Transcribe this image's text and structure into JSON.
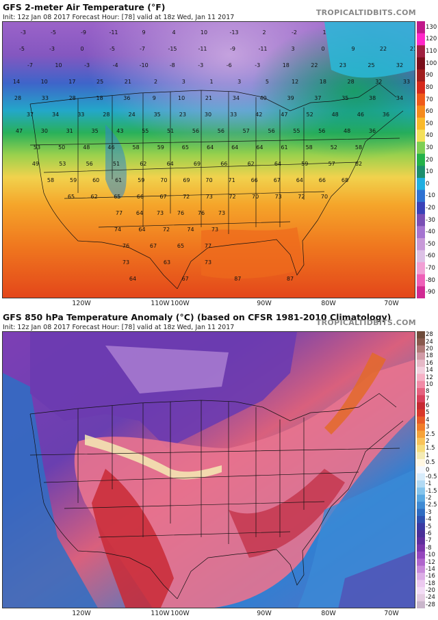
{
  "top_panel": {
    "title": "GFS 2-meter Air Temperature (°F)",
    "subtitle": "Init: 12z Jan 08 2017   Forecast Hour: [78]   valid at 18z Wed, Jan 11 2017",
    "brand": "TROPICALTIDBITS.COM",
    "colorbar_ticks": [
      "130",
      "120",
      "110",
      "100",
      "90",
      "80",
      "70",
      "60",
      "50",
      "40",
      "30",
      "20",
      "10",
      "0",
      "-10",
      "-20",
      "-30",
      "-40",
      "-50",
      "-60",
      "-70",
      "-80",
      "-90"
    ],
    "colorbar_colors": [
      "#c0198a",
      "#ff28c9",
      "#a02040",
      "#7a0e1a",
      "#a01e1e",
      "#d62a1c",
      "#ef5a1a",
      "#f58a1c",
      "#f9b92a",
      "#f4e05a",
      "#7fcf55",
      "#24b24a",
      "#1c8f6d",
      "#20aee0",
      "#2f72d2",
      "#3a42b8",
      "#7a4fb5",
      "#a574d0",
      "#c89ad8",
      "#dcc1e6",
      "#f1a0d5",
      "#ee60b8",
      "#d02a93"
    ],
    "lon_labels": [
      "120W",
      "110W",
      "100W",
      "90W",
      "80W",
      "70W"
    ],
    "temp_values": [
      [
        "-3",
        "-5",
        "-9",
        "-11",
        "9",
        "4",
        "10",
        "-13",
        "2",
        "-2",
        "1"
      ],
      [
        "-5",
        "-3",
        "0",
        "-5",
        "-7",
        "-15",
        "-11",
        "-9",
        "-11",
        "3",
        "0",
        "9",
        "22",
        "21"
      ],
      [
        "-7",
        "10",
        "-3",
        "-4",
        "-10",
        "-8",
        "-3",
        "-6",
        "-3",
        "18",
        "22",
        "23",
        "25",
        "32"
      ],
      [
        "14",
        "10",
        "17",
        "25",
        "21",
        "2",
        "3",
        "1",
        "3",
        "5",
        "12",
        "18",
        "28",
        "32",
        "33"
      ],
      [
        "28",
        "33",
        "28",
        "18",
        "36",
        "9",
        "10",
        "21",
        "34",
        "40",
        "39",
        "37",
        "35",
        "38",
        "34"
      ],
      [
        "37",
        "34",
        "33",
        "28",
        "24",
        "35",
        "23",
        "30",
        "33",
        "42",
        "47",
        "52",
        "48",
        "46",
        "36"
      ],
      [
        "47",
        "30",
        "31",
        "35",
        "43",
        "55",
        "51",
        "56",
        "56",
        "57",
        "56",
        "55",
        "56",
        "48",
        "36"
      ],
      [
        "53",
        "50",
        "48",
        "46",
        "58",
        "59",
        "65",
        "64",
        "64",
        "64",
        "61",
        "58",
        "52",
        "58"
      ],
      [
        "49",
        "53",
        "56",
        "51",
        "62",
        "64",
        "69",
        "66",
        "62",
        "64",
        "59",
        "57",
        "62"
      ],
      [
        "58",
        "59",
        "60",
        "61",
        "59",
        "70",
        "69",
        "70",
        "71",
        "66",
        "67",
        "64",
        "66",
        "68"
      ],
      [
        "65",
        "62",
        "65",
        "66",
        "67",
        "72",
        "73",
        "72",
        "70",
        "73",
        "72",
        "70"
      ],
      [
        "77",
        "64",
        "73",
        "76",
        "76",
        "73"
      ],
      [
        "74",
        "64",
        "72",
        "74",
        "73"
      ],
      [
        "76",
        "67",
        "65",
        "77"
      ],
      [
        "73",
        "63",
        "73"
      ],
      [
        "64",
        "67",
        "87",
        "87"
      ]
    ]
  },
  "bottom_panel": {
    "title": "GFS 850 hPa Temperature Anomaly (°C) (based on CFSR 1981-2010 Climatology)",
    "subtitle": "Init: 12z Jan 08 2017   Forecast Hour: [78]   valid at 18z Wed, Jan 11 2017",
    "brand": "TROPICALTIDBITS.COM",
    "colorbar_ticks": [
      "28",
      "24",
      "20",
      "18",
      "16",
      "14",
      "12",
      "10",
      "8",
      "7",
      "6",
      "5",
      "4",
      "3",
      "2.5",
      "2",
      "1.5",
      "1",
      "0.5",
      "0",
      "-0.5",
      "-1",
      "-1.5",
      "-2",
      "-2.5",
      "-3",
      "-4",
      "-5",
      "-6",
      "-7",
      "-8",
      "-10",
      "-12",
      "-14",
      "-16",
      "-18",
      "-20",
      "-24",
      "-28"
    ],
    "colorbar_colors": [
      "#6e4b3a",
      "#8a5a4e",
      "#b07a78",
      "#d19aa6",
      "#e6b9c7",
      "#f3d0de",
      "#f6b1c6",
      "#f18ba7",
      "#e5617f",
      "#d8405c",
      "#c62a33",
      "#d9382b",
      "#e85b28",
      "#f07d2a",
      "#f6a33a",
      "#f9c35a",
      "#f6dc7e",
      "#f4ebb4",
      "#fff7e2",
      "#f4f8ff",
      "#d7ecfb",
      "#b1daf4",
      "#84c4ec",
      "#5aa9e2",
      "#3f8bd4",
      "#2f6cc1",
      "#2f51b0",
      "#3a3aa3",
      "#4a2f98",
      "#5f2e9d",
      "#7a35aa",
      "#9547bd",
      "#b066cc",
      "#c88ad9",
      "#dcaee6",
      "#ecc9f0",
      "#f3dcf6",
      "#e5cde2",
      "#c9b6cb"
    ],
    "lon_labels": [
      "120W",
      "110W",
      "100W",
      "90W",
      "80W",
      "70W"
    ]
  }
}
